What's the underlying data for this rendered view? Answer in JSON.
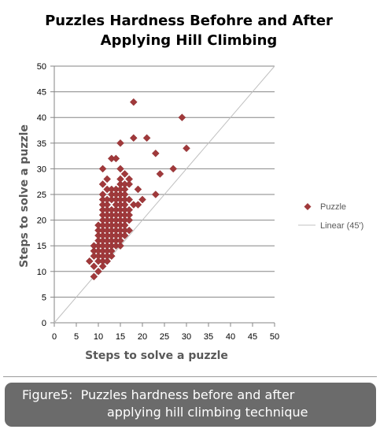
{
  "chart_data": {
    "type": "scatter",
    "title": "Puzzles Hardness Befohre and After\nApplying Hill Climbing",
    "xlabel": "Steps to solve a puzzle",
    "ylabel": "Steps to solve a puzzle",
    "xlim": [
      0,
      50
    ],
    "ylim": [
      0,
      50
    ],
    "xticks": [
      "0",
      "5",
      "10",
      "15",
      "20",
      "25",
      "30",
      "35",
      "40",
      "45",
      "50"
    ],
    "yticks": [
      "0",
      "5",
      "10",
      "15",
      "20",
      "25",
      "30",
      "35",
      "40",
      "45",
      "50"
    ],
    "grid": true,
    "legend_position": "right",
    "series": [
      {
        "name": "Puzzle",
        "marker": "diamond",
        "color": "#A0393B",
        "points": [
          [
            8,
            12
          ],
          [
            9,
            9
          ],
          [
            9,
            11
          ],
          [
            9,
            13
          ],
          [
            9,
            14
          ],
          [
            9,
            15
          ],
          [
            10,
            10
          ],
          [
            10,
            12
          ],
          [
            10,
            13
          ],
          [
            10,
            14
          ],
          [
            10,
            15
          ],
          [
            10,
            16
          ],
          [
            10,
            17
          ],
          [
            10,
            18
          ],
          [
            10,
            19
          ],
          [
            11,
            11
          ],
          [
            11,
            12
          ],
          [
            11,
            13
          ],
          [
            11,
            14
          ],
          [
            11,
            15
          ],
          [
            11,
            16
          ],
          [
            11,
            17
          ],
          [
            11,
            18
          ],
          [
            11,
            19
          ],
          [
            11,
            20
          ],
          [
            11,
            21
          ],
          [
            11,
            22
          ],
          [
            11,
            23
          ],
          [
            11,
            24
          ],
          [
            11,
            25
          ],
          [
            11,
            27
          ],
          [
            11,
            30
          ],
          [
            12,
            12
          ],
          [
            12,
            13
          ],
          [
            12,
            14
          ],
          [
            12,
            15
          ],
          [
            12,
            16
          ],
          [
            12,
            17
          ],
          [
            12,
            18
          ],
          [
            12,
            19
          ],
          [
            12,
            20
          ],
          [
            12,
            21
          ],
          [
            12,
            22
          ],
          [
            12,
            23
          ],
          [
            12,
            24
          ],
          [
            12,
            26
          ],
          [
            12,
            28
          ],
          [
            13,
            13
          ],
          [
            13,
            14
          ],
          [
            13,
            15
          ],
          [
            13,
            16
          ],
          [
            13,
            17
          ],
          [
            13,
            18
          ],
          [
            13,
            19
          ],
          [
            13,
            20
          ],
          [
            13,
            21
          ],
          [
            13,
            22
          ],
          [
            13,
            24
          ],
          [
            13,
            25
          ],
          [
            13,
            26
          ],
          [
            13,
            32
          ],
          [
            14,
            15
          ],
          [
            14,
            16
          ],
          [
            14,
            17
          ],
          [
            14,
            18
          ],
          [
            14,
            19
          ],
          [
            14,
            20
          ],
          [
            14,
            21
          ],
          [
            14,
            22
          ],
          [
            14,
            23
          ],
          [
            14,
            24
          ],
          [
            14,
            25
          ],
          [
            14,
            26
          ],
          [
            14,
            32
          ],
          [
            15,
            15
          ],
          [
            15,
            16
          ],
          [
            15,
            17
          ],
          [
            15,
            18
          ],
          [
            15,
            19
          ],
          [
            15,
            20
          ],
          [
            15,
            21
          ],
          [
            15,
            22
          ],
          [
            15,
            23
          ],
          [
            15,
            24
          ],
          [
            15,
            25
          ],
          [
            15,
            26
          ],
          [
            15,
            27
          ],
          [
            15,
            28
          ],
          [
            15,
            30
          ],
          [
            15,
            35
          ],
          [
            16,
            17
          ],
          [
            16,
            18
          ],
          [
            16,
            19
          ],
          [
            16,
            20
          ],
          [
            16,
            21
          ],
          [
            16,
            22
          ],
          [
            16,
            23
          ],
          [
            16,
            24
          ],
          [
            16,
            25
          ],
          [
            16,
            26
          ],
          [
            16,
            27
          ],
          [
            16,
            29
          ],
          [
            17,
            18
          ],
          [
            17,
            20
          ],
          [
            17,
            21
          ],
          [
            17,
            22
          ],
          [
            17,
            24
          ],
          [
            17,
            27
          ],
          [
            17,
            28
          ],
          [
            18,
            23
          ],
          [
            18,
            36
          ],
          [
            18,
            43
          ],
          [
            19,
            23
          ],
          [
            19,
            26
          ],
          [
            20,
            24
          ],
          [
            21,
            36
          ],
          [
            23,
            25
          ],
          [
            23,
            33
          ],
          [
            24,
            29
          ],
          [
            27,
            30
          ],
          [
            29,
            40
          ],
          [
            30,
            34
          ]
        ]
      },
      {
        "name": "Linear (45')",
        "type": "line",
        "color": "#C0C0C0",
        "points": [
          [
            0,
            0
          ],
          [
            50,
            50
          ]
        ]
      }
    ]
  },
  "caption": {
    "line1": "Figure5:  Puzzles hardness before and after",
    "line2": "applying hill climbing technique"
  }
}
